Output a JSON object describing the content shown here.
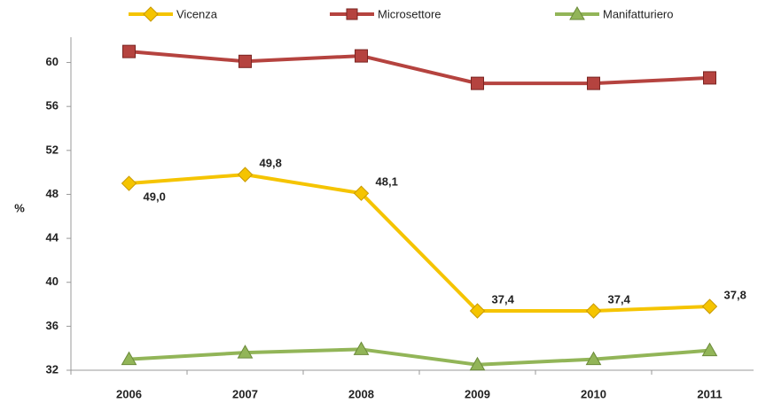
{
  "chart_data": {
    "type": "line",
    "y_label": "%",
    "categories": [
      "2006",
      "2007",
      "2008",
      "2009",
      "2010",
      "2011"
    ],
    "series": [
      {
        "name": "Vicenza",
        "color": "#f5c400",
        "marker": "diamond",
        "values": [
          49.0,
          49.8,
          48.1,
          37.4,
          37.4,
          37.8
        ],
        "value_labels": [
          "49,0",
          "49,8",
          "48,1",
          "37,4",
          "37,4",
          "37,8"
        ]
      },
      {
        "name": "Microsettore",
        "color": "#b5433f",
        "marker": "square",
        "values": [
          61.0,
          60.1,
          60.6,
          58.1,
          58.1,
          58.6
        ]
      },
      {
        "name": "Manifatturiero",
        "color": "#92b558",
        "marker": "triangle",
        "values": [
          33.0,
          33.6,
          33.9,
          32.5,
          33.0,
          33.8
        ]
      }
    ],
    "ylim": [
      32,
      62.3
    ],
    "yticks": [
      32,
      36,
      40,
      44,
      48,
      52,
      56,
      60
    ]
  }
}
